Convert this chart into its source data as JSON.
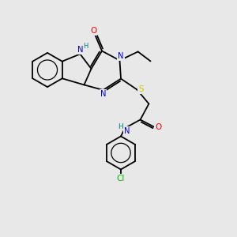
{
  "background_color": "#e8e8e8",
  "bond_color": "#000000",
  "colors": {
    "N": "#0000cc",
    "O": "#ff0000",
    "S": "#cccc00",
    "Cl": "#00bb00",
    "H_label": "#008080",
    "C": "#000000"
  },
  "figsize": [
    3.0,
    3.0
  ],
  "dpi": 100
}
